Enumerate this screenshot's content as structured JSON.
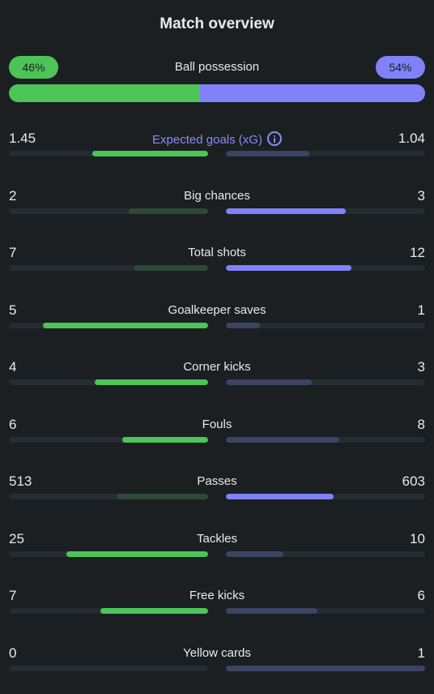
{
  "title": "Match overview",
  "colors": {
    "home_primary": "#4cc458",
    "home_muted": "#2e4a35",
    "away_primary": "#8082f9",
    "away_muted": "#3d4362",
    "track": "#272c30"
  },
  "possession": {
    "label": "Ball possession",
    "home_text": "46%",
    "away_text": "54%",
    "home": 46,
    "away": 54
  },
  "xg_info_icon": "info-icon",
  "stats": [
    {
      "label": "Expected goals (xG)",
      "home": "1.45",
      "away": "1.04",
      "home_fill": 0.58,
      "away_fill": 0.42,
      "home_bright": true,
      "away_bright": false,
      "highlight": true,
      "info": true
    },
    {
      "label": "Big chances",
      "home": "2",
      "away": "3",
      "home_fill": 0.4,
      "away_fill": 0.6,
      "home_bright": false,
      "away_bright": true
    },
    {
      "label": "Total shots",
      "home": "7",
      "away": "12",
      "home_fill": 0.37,
      "away_fill": 0.63,
      "home_bright": false,
      "away_bright": true
    },
    {
      "label": "Goalkeeper saves",
      "home": "5",
      "away": "1",
      "home_fill": 0.83,
      "away_fill": 0.17,
      "home_bright": true,
      "away_bright": false
    },
    {
      "label": "Corner kicks",
      "home": "4",
      "away": "3",
      "home_fill": 0.57,
      "away_fill": 0.43,
      "home_bright": true,
      "away_bright": false
    },
    {
      "label": "Fouls",
      "home": "6",
      "away": "8",
      "home_fill": 0.43,
      "away_fill": 0.57,
      "home_bright": true,
      "away_bright": false
    },
    {
      "label": "Passes",
      "home": "513",
      "away": "603",
      "home_fill": 0.46,
      "away_fill": 0.54,
      "home_bright": false,
      "away_bright": true
    },
    {
      "label": "Tackles",
      "home": "25",
      "away": "10",
      "home_fill": 0.71,
      "away_fill": 0.29,
      "home_bright": true,
      "away_bright": false
    },
    {
      "label": "Free kicks",
      "home": "7",
      "away": "6",
      "home_fill": 0.54,
      "away_fill": 0.46,
      "home_bright": true,
      "away_bright": false
    },
    {
      "label": "Yellow cards",
      "home": "0",
      "away": "1",
      "home_fill": 0.0,
      "away_fill": 1.0,
      "home_bright": false,
      "away_bright": false
    }
  ]
}
